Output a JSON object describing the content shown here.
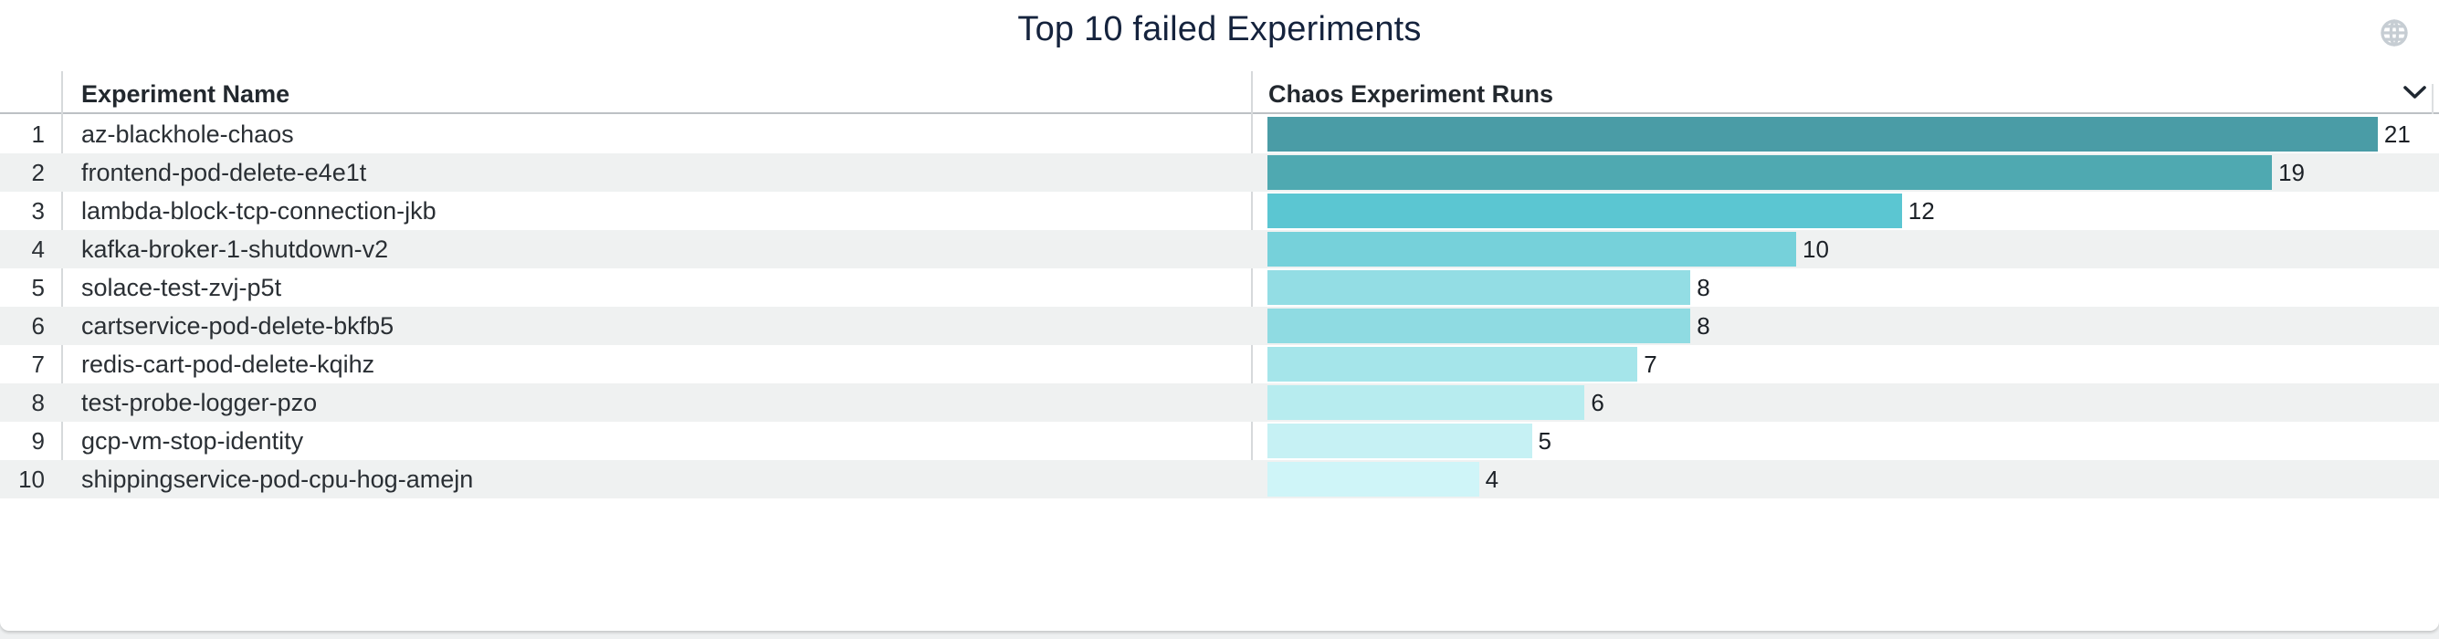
{
  "panel": {
    "title": "Top 10 failed Experiments",
    "columns": {
      "name": "Experiment Name",
      "runs": "Chaos Experiment Runs"
    },
    "icons": {
      "globe": "globe-icon",
      "sort": "chevron-down-icon"
    },
    "colors": {
      "title_text": "#15233d",
      "header_text": "#22282e",
      "row_alt_bg": "#eff1f1",
      "divider": "#d6d9db"
    }
  },
  "chart_data": {
    "type": "bar",
    "orientation": "horizontal",
    "title": "Top 10 failed Experiments",
    "xlabel": "Chaos Experiment Runs",
    "ylabel": "Experiment Name",
    "xlim": [
      0,
      21
    ],
    "grid": false,
    "legend": false,
    "categories": [
      "az-blackhole-chaos",
      "frontend-pod-delete-e4e1t",
      "lambda-block-tcp-connection-jkb",
      "kafka-broker-1-shutdown-v2",
      "solace-test-zvj-p5t",
      "cartservice-pod-delete-bkfb5",
      "redis-cart-pod-delete-kqihz",
      "test-probe-logger-pzo",
      "gcp-vm-stop-identity",
      "shippingservice-pod-cpu-hog-amejn"
    ],
    "values": [
      21,
      19,
      12,
      10,
      8,
      8,
      7,
      6,
      5,
      4
    ],
    "bar_colors": [
      "#4a9ca6",
      "#4fa9b1",
      "#5bc6d2",
      "#76d1da",
      "#93dde4",
      "#8fdbe2",
      "#a5e5ea",
      "#b7ecef",
      "#c6f1f4",
      "#cff5f8"
    ]
  },
  "rows": [
    {
      "rank": "1",
      "name": "az-blackhole-chaos",
      "value": "21",
      "color": "#4a9ca6"
    },
    {
      "rank": "2",
      "name": "frontend-pod-delete-e4e1t",
      "value": "19",
      "color": "#4fa9b1"
    },
    {
      "rank": "3",
      "name": "lambda-block-tcp-connection-jkb",
      "value": "12",
      "color": "#5bc6d2"
    },
    {
      "rank": "4",
      "name": "kafka-broker-1-shutdown-v2",
      "value": "10",
      "color": "#76d1da"
    },
    {
      "rank": "5",
      "name": "solace-test-zvj-p5t",
      "value": "8",
      "color": "#93dde4"
    },
    {
      "rank": "6",
      "name": "cartservice-pod-delete-bkfb5",
      "value": "8",
      "color": "#8fdbe2"
    },
    {
      "rank": "7",
      "name": "redis-cart-pod-delete-kqihz",
      "value": "7",
      "color": "#a5e5ea"
    },
    {
      "rank": "8",
      "name": "test-probe-logger-pzo",
      "value": "6",
      "color": "#b7ecef"
    },
    {
      "rank": "9",
      "name": "gcp-vm-stop-identity",
      "value": "5",
      "color": "#c6f1f4"
    },
    {
      "rank": "10",
      "name": "shippingservice-pod-cpu-hog-amejn",
      "value": "4",
      "color": "#cff5f8"
    }
  ]
}
